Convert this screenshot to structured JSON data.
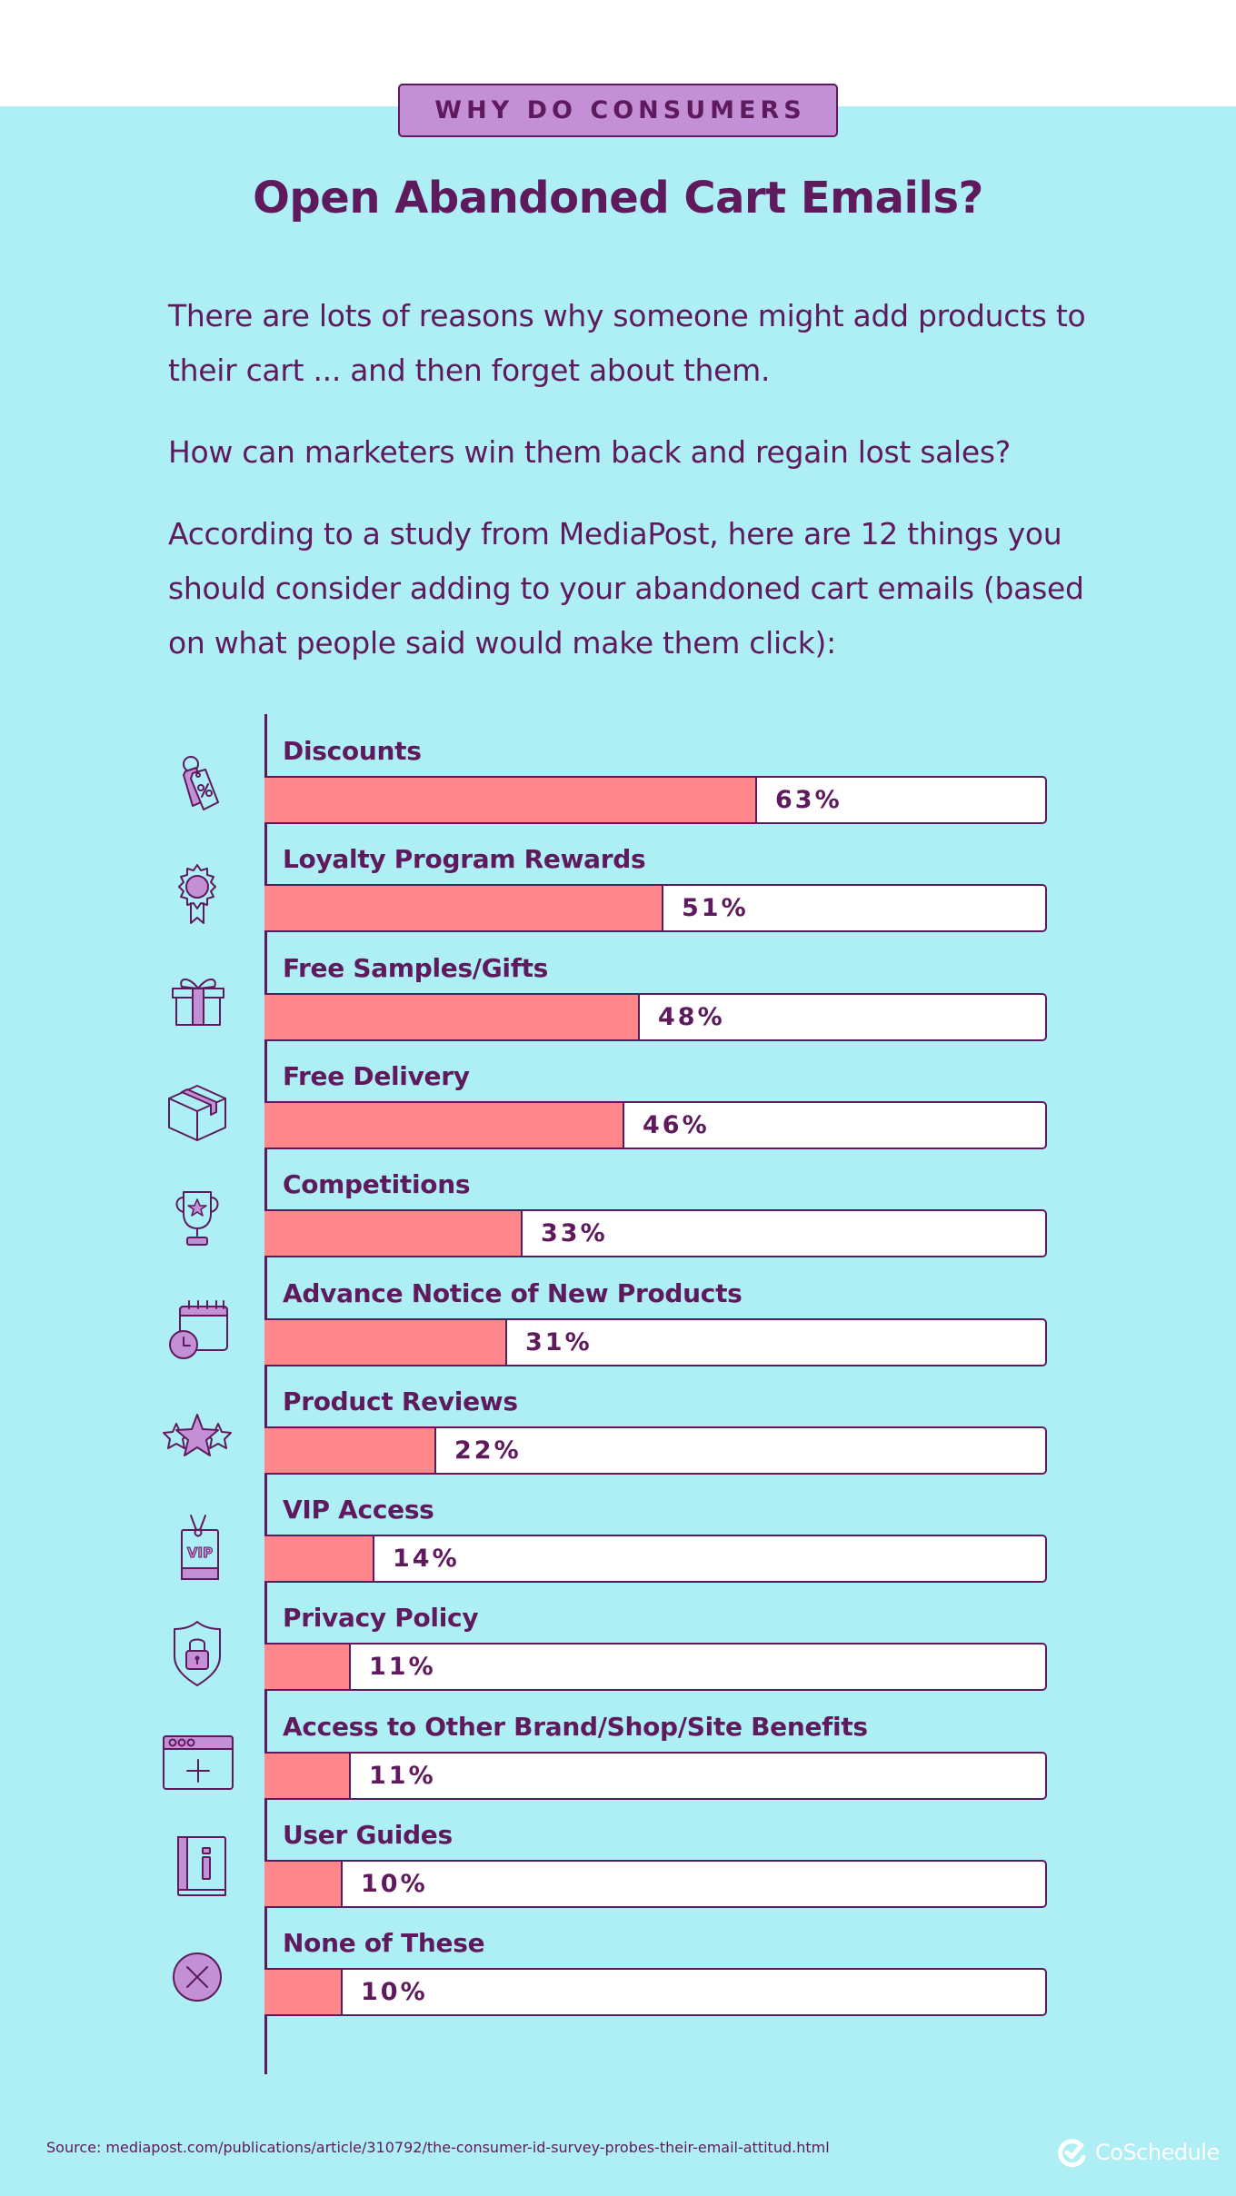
{
  "colors": {
    "background": "#aeeff5",
    "header_bg": "#ffffff",
    "primary_text": "#5f1a5e",
    "badge_bg": "#c390d5",
    "bar_fill": "#ff868a",
    "bar_track": "#ffffff",
    "icon_accent": "#c390d5",
    "logo": "#ffffff"
  },
  "header": {
    "badge": "WHY DO CONSUMERS",
    "title": "Open Abandoned Cart Emails?"
  },
  "intro": {
    "paragraphs": [
      "There are lots of reasons why someone might add products to their cart ... and then forget about them.",
      "How can marketers win them back and regain lost sales?",
      "According to a study from MediaPost, here are 12 things you should consider adding to your abandoned cart emails (based on what people said would make them click):"
    ]
  },
  "chart_data": {
    "type": "bar",
    "orientation": "horizontal",
    "title": "Why Do Consumers Open Abandoned Cart Emails?",
    "xlabel": "",
    "ylabel": "",
    "xlim": [
      0,
      100
    ],
    "unit": "%",
    "grid": false,
    "legend": null,
    "categories": [
      "Discounts",
      "Loyalty Program Rewards",
      "Free Samples/Gifts",
      "Free Delivery",
      "Competitions",
      "Advance Notice of New Products",
      "Product Reviews",
      "VIP Access",
      "Privacy Policy",
      "Access to Other Brand/Shop/Site Benefits",
      "User Guides",
      "None of These"
    ],
    "values": [
      63,
      51,
      48,
      46,
      33,
      31,
      22,
      14,
      11,
      11,
      10,
      10
    ],
    "icons": [
      "discount-tag-icon",
      "award-ribbon-icon",
      "gift-box-icon",
      "delivery-box-icon",
      "trophy-icon",
      "calendar-clock-icon",
      "stars-icon",
      "vip-badge-icon",
      "shield-lock-icon",
      "browser-plus-icon",
      "info-book-icon",
      "x-circle-icon"
    ]
  },
  "rows": [
    {
      "label": "Discounts",
      "value": 63,
      "display": "63%"
    },
    {
      "label": "Loyalty Program Rewards",
      "value": 51,
      "display": "51%"
    },
    {
      "label": "Free Samples/Gifts",
      "value": 48,
      "display": "48%"
    },
    {
      "label": "Free Delivery",
      "value": 46,
      "display": "46%"
    },
    {
      "label": "Competitions",
      "value": 33,
      "display": "33%"
    },
    {
      "label": "Advance Notice of New Products",
      "value": 31,
      "display": "31%"
    },
    {
      "label": "Product Reviews",
      "value": 22,
      "display": "22%"
    },
    {
      "label": "VIP Access",
      "value": 14,
      "display": "14%"
    },
    {
      "label": "Privacy Policy",
      "value": 11,
      "display": "11%"
    },
    {
      "label": "Access to Other Brand/Shop/Site Benefits",
      "value": 11,
      "display": "11%"
    },
    {
      "label": "User Guides",
      "value": 10,
      "display": "10%"
    },
    {
      "label": "None of These",
      "value": 10,
      "display": "10%"
    }
  ],
  "footer": {
    "source": "Source: mediapost.com/publications/article/310792/the-consumer-id-survey-probes-their-email-attitud.html",
    "logo_text": "CoSchedule"
  }
}
